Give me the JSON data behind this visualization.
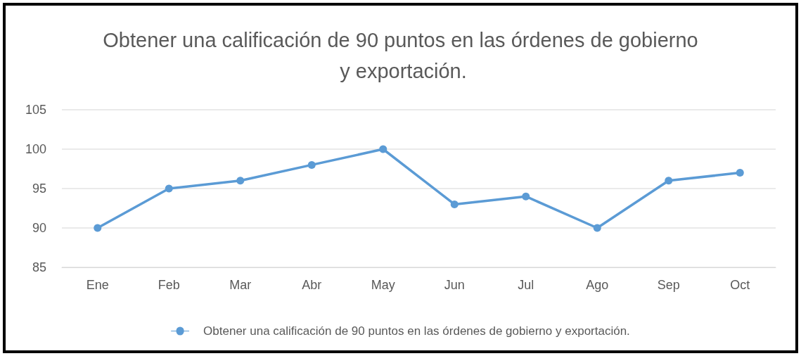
{
  "chart_data": {
    "type": "line",
    "title": "Obtener una calificación de 90 puntos en las órdenes de gobierno y exportación.",
    "categories": [
      "Ene",
      "Feb",
      "Mar",
      "Abr",
      "May",
      "Jun",
      "Jul",
      "Ago",
      "Sep",
      "Oct"
    ],
    "series": [
      {
        "name": "Obtener una calificación de 90 puntos en las órdenes de gobierno y exportación.",
        "color": "#5b9bd5",
        "values": [
          90,
          95,
          96,
          98,
          100,
          93,
          94,
          90,
          96,
          97
        ]
      }
    ],
    "ylim": [
      85,
      105
    ],
    "yticks": [
      85,
      90,
      95,
      100,
      105
    ],
    "grid": "y",
    "legend": "bottom",
    "marker": "circle",
    "line_style": "solid"
  }
}
